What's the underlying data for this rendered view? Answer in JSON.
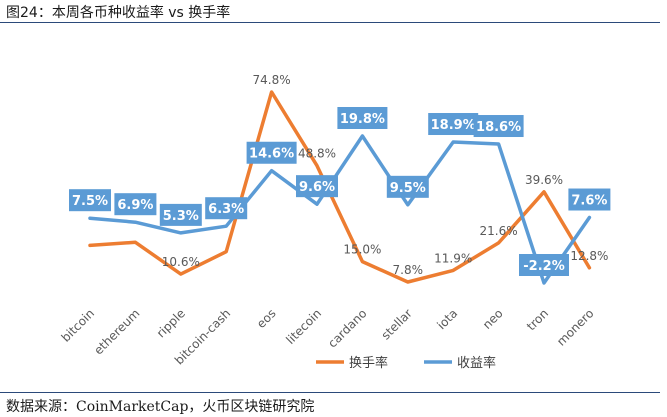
{
  "title": "图24：本周各币种收益率 vs 换手率",
  "source": "数据来源：CoinMarketCap，火币区块链研究院",
  "chart_data": {
    "type": "line",
    "title": "图24：本周各币种收益率 vs 换手率",
    "xlabel": "",
    "ylabel": "",
    "categories": [
      "bitcoin",
      "ethereum",
      "ripple",
      "bitcoin-cash",
      "eos",
      "litecoin",
      "cardano",
      "stellar",
      "iota",
      "neo",
      "tron",
      "monero"
    ],
    "series": [
      {
        "name": "换手率",
        "color": "#ED7D31",
        "values": [
          20.7,
          21.8,
          10.6,
          18.5,
          74.8,
          48.8,
          15.0,
          7.8,
          11.9,
          21.6,
          39.6,
          12.8
        ],
        "labels": [
          "",
          "",
          "10.6%",
          "",
          "74.8%",
          "48.8%",
          "15.0%",
          "7.8%",
          "11.9%",
          "21.6%",
          "39.6%",
          "12.8%"
        ]
      },
      {
        "name": "收益率",
        "color": "#5B9BD5",
        "values": [
          7.5,
          6.9,
          5.3,
          6.3,
          14.6,
          9.6,
          19.8,
          9.5,
          18.9,
          18.6,
          -2.2,
          7.6
        ],
        "labels": [
          "7.5%",
          "6.9%",
          "5.3%",
          "6.3%",
          "14.6%",
          "9.6%",
          "19.8%",
          "9.5%",
          "18.9%",
          "18.6%",
          "-2.2%",
          "7.6%"
        ]
      }
    ],
    "grid": false,
    "legend": "bottom-center"
  }
}
